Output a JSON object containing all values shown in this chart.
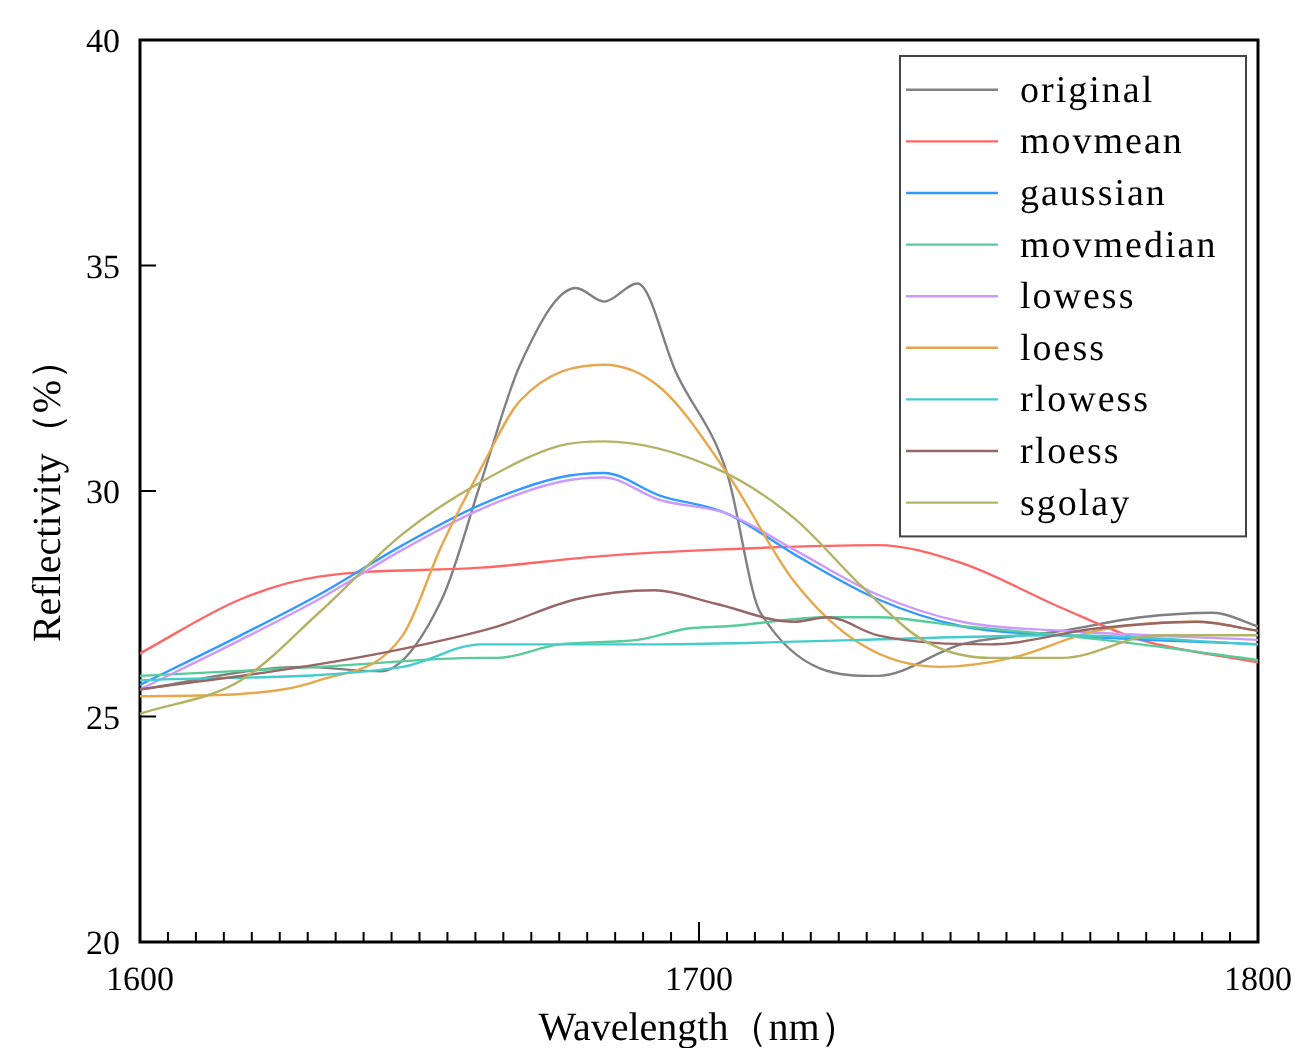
{
  "chart_data": {
    "type": "line",
    "xlabel": "Wavelength（nm）",
    "ylabel": "Reflectivity（%）",
    "xlim": [
      1600,
      1800
    ],
    "ylim": [
      20,
      40
    ],
    "xticks": [
      1600,
      {
        "value": 1605,
        "label": null
      },
      {
        "value": 1610,
        "label": null
      },
      {
        "value": 1615,
        "label": null
      },
      {
        "value": 1620,
        "label": null
      },
      {
        "value": 1625,
        "label": null
      },
      {
        "value": 1630,
        "label": null
      },
      {
        "value": 1635,
        "label": null
      },
      {
        "value": 1640,
        "label": null
      },
      {
        "value": 1645,
        "label": null
      },
      {
        "value": 1650,
        "label": null
      },
      {
        "value": 1655,
        "label": null
      },
      {
        "value": 1660,
        "label": null
      },
      {
        "value": 1665,
        "label": null
      },
      {
        "value": 1670,
        "label": null
      },
      {
        "value": 1675,
        "label": null
      },
      {
        "value": 1680,
        "label": null
      },
      {
        "value": 1685,
        "label": null
      },
      {
        "value": 1690,
        "label": null
      },
      {
        "value": 1695,
        "label": null
      },
      1700,
      {
        "value": 1705,
        "label": null
      },
      {
        "value": 1710,
        "label": null
      },
      {
        "value": 1715,
        "label": null
      },
      {
        "value": 1720,
        "label": null
      },
      {
        "value": 1725,
        "label": null
      },
      {
        "value": 1730,
        "label": null
      },
      {
        "value": 1735,
        "label": null
      },
      {
        "value": 1740,
        "label": null
      },
      {
        "value": 1745,
        "label": null
      },
      {
        "value": 1750,
        "label": null
      },
      {
        "value": 1755,
        "label": null
      },
      {
        "value": 1760,
        "label": null
      },
      {
        "value": 1765,
        "label": null
      },
      {
        "value": 1770,
        "label": null
      },
      {
        "value": 1775,
        "label": null
      },
      {
        "value": 1780,
        "label": null
      },
      {
        "value": 1785,
        "label": null
      },
      {
        "value": 1790,
        "label": null
      },
      {
        "value": 1795,
        "label": null
      },
      1800
    ],
    "yticks": [
      20,
      25,
      30,
      35,
      40
    ],
    "grid": false,
    "legend": "top right",
    "marker": "none",
    "line_style": "solid",
    "series": [
      {
        "name": "original",
        "color": "#808080",
        "x": [
          1600,
          1629,
          1643,
          1654,
          1661,
          1668,
          1678,
          1683,
          1689,
          1696,
          1705,
          1711,
          1732,
          1747,
          1765,
          1779,
          1792,
          1800
        ],
        "values": [
          25.6,
          26.1,
          26.0,
          27.6,
          30.2,
          32.8,
          34.5,
          34.2,
          34.6,
          32.6,
          30.4,
          27.3,
          25.9,
          26.6,
          26.9,
          27.2,
          27.3,
          27.0
        ]
      },
      {
        "name": "movmean",
        "color": "#ff6666",
        "x": [
          1600,
          1618,
          1632,
          1661,
          1682,
          1703,
          1732,
          1747,
          1765,
          1779,
          1800
        ],
        "values": [
          26.4,
          27.6,
          28.1,
          28.3,
          28.55,
          28.7,
          28.8,
          28.4,
          27.4,
          26.7,
          26.2
        ]
      },
      {
        "name": "gaussian",
        "color": "#3399ff",
        "x": [
          1600,
          1618,
          1632,
          1647,
          1661,
          1675,
          1683,
          1693,
          1705,
          1717,
          1732,
          1747,
          1765,
          1800
        ],
        "values": [
          25.7,
          26.8,
          27.7,
          28.8,
          29.7,
          30.3,
          30.4,
          29.9,
          29.5,
          28.6,
          27.6,
          27.0,
          26.8,
          26.6
        ]
      },
      {
        "name": "movmedian",
        "color": "#55cc99",
        "x": [
          1600,
          1632,
          1661,
          1664,
          1675,
          1689,
          1698,
          1705,
          1723,
          1732,
          1747,
          1765,
          1779,
          1800
        ],
        "values": [
          25.9,
          26.1,
          26.3,
          26.3,
          26.6,
          26.7,
          26.95,
          27.0,
          27.2,
          27.2,
          27.0,
          26.8,
          26.6,
          26.25
        ]
      },
      {
        "name": "lowess",
        "color": "#cc99ff",
        "x": [
          1600,
          1618,
          1632,
          1647,
          1661,
          1675,
          1683,
          1693,
          1705,
          1717,
          1732,
          1747,
          1765,
          1800
        ],
        "values": [
          25.6,
          26.7,
          27.6,
          28.7,
          29.6,
          30.2,
          30.3,
          29.8,
          29.5,
          28.7,
          27.7,
          27.1,
          26.9,
          26.7
        ]
      },
      {
        "name": "loess",
        "color": "#e6a84d",
        "x": [
          1600,
          1618,
          1632,
          1647,
          1654,
          1661,
          1668,
          1683,
          1693,
          1705,
          1717,
          1729,
          1743,
          1756,
          1771,
          1789,
          1800
        ],
        "values": [
          25.45,
          25.5,
          25.8,
          26.8,
          28.8,
          30.5,
          32.0,
          32.8,
          32.3,
          30.4,
          28.0,
          26.6,
          26.1,
          26.3,
          26.9,
          27.1,
          26.9
        ]
      },
      {
        "name": "rlowess",
        "color": "#44cccc",
        "x": [
          1600,
          1647,
          1661,
          1693,
          1729,
          1765,
          1800
        ],
        "values": [
          25.8,
          26.1,
          26.6,
          26.6,
          26.7,
          26.8,
          26.6
        ]
      },
      {
        "name": "rloess",
        "color": "#996666",
        "x": [
          1600,
          1629,
          1647,
          1664,
          1678,
          1692,
          1703,
          1717,
          1723,
          1732,
          1752,
          1771,
          1789,
          1800
        ],
        "values": [
          25.6,
          26.1,
          26.5,
          27.0,
          27.6,
          27.8,
          27.5,
          27.1,
          27.2,
          26.8,
          26.6,
          26.95,
          27.1,
          26.9
        ]
      },
      {
        "name": "sgolay",
        "color": "#b3b366",
        "x": [
          1600,
          1618,
          1632,
          1647,
          1661,
          1675,
          1683,
          1703,
          1717,
          1729,
          1740,
          1752,
          1765,
          1782,
          1800
        ],
        "values": [
          25.06,
          25.8,
          27.3,
          29.05,
          30.2,
          31.0,
          31.1,
          30.5,
          29.4,
          27.9,
          26.7,
          26.3,
          26.3,
          26.8,
          26.8
        ]
      }
    ]
  }
}
